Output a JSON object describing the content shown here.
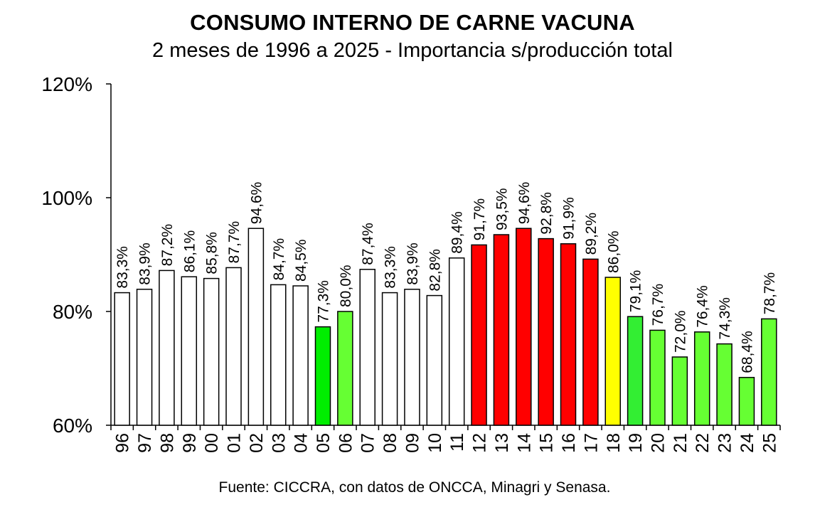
{
  "chart_data": {
    "type": "bar",
    "title": "CONSUMO INTERNO DE CARNE VACUNA",
    "subtitle": "2 meses de 1996 a 2025 - Importancia s/producción total",
    "source": "Fuente: CICCRA, con datos de ONCCA, Minagri y Senasa.",
    "xlabel": "",
    "ylabel": "",
    "ylim": [
      60,
      120
    ],
    "yticks": [
      60,
      80,
      100,
      120
    ],
    "ytick_labels": [
      "60%",
      "80%",
      "100%",
      "120%"
    ],
    "grid": false,
    "legend": "none",
    "categories": [
      "96",
      "97",
      "98",
      "99",
      "00",
      "01",
      "02",
      "03",
      "04",
      "05",
      "06",
      "07",
      "08",
      "09",
      "10",
      "11",
      "12",
      "13",
      "14",
      "15",
      "16",
      "17",
      "18",
      "19",
      "20",
      "21",
      "22",
      "23",
      "24",
      "25"
    ],
    "values": [
      83.3,
      83.9,
      87.2,
      86.1,
      85.8,
      87.7,
      94.6,
      84.7,
      84.5,
      77.3,
      80.0,
      87.4,
      83.3,
      83.9,
      82.8,
      89.4,
      91.7,
      93.5,
      94.6,
      92.8,
      91.9,
      89.2,
      86.0,
      79.1,
      76.7,
      72.0,
      76.4,
      74.3,
      68.4,
      78.7
    ],
    "data_labels": [
      "83,3%",
      "83,9%",
      "87,2%",
      "86,1%",
      "85,8%",
      "87,7%",
      "94,6%",
      "84,7%",
      "84,5%",
      "77,3%",
      "80,0%",
      "87,4%",
      "83,3%",
      "83,9%",
      "82,8%",
      "89,4%",
      "91,7%",
      "93,5%",
      "94,6%",
      "92,8%",
      "91,9%",
      "89,2%",
      "86,0%",
      "79,1%",
      "76,7%",
      "72,0%",
      "76,4%",
      "74,3%",
      "68,4%",
      "78,7%"
    ],
    "bar_colors": [
      "#ffffff",
      "#ffffff",
      "#ffffff",
      "#ffffff",
      "#ffffff",
      "#ffffff",
      "#ffffff",
      "#ffffff",
      "#ffffff",
      "#00ee00",
      "#66ff33",
      "#ffffff",
      "#ffffff",
      "#ffffff",
      "#ffffff",
      "#ffffff",
      "#ff0000",
      "#ff0000",
      "#ff0000",
      "#ff0000",
      "#ff0000",
      "#ff0000",
      "#ffff00",
      "#33ee33",
      "#66ff33",
      "#66ff33",
      "#66ff33",
      "#66ff33",
      "#66ff33",
      "#66ff33"
    ],
    "colors": {
      "white": "#ffffff",
      "red": "#ff0000",
      "yellow": "#ffff00",
      "green": "#66ff33",
      "dark_green": "#00ee00",
      "outline": "#000000"
    }
  }
}
